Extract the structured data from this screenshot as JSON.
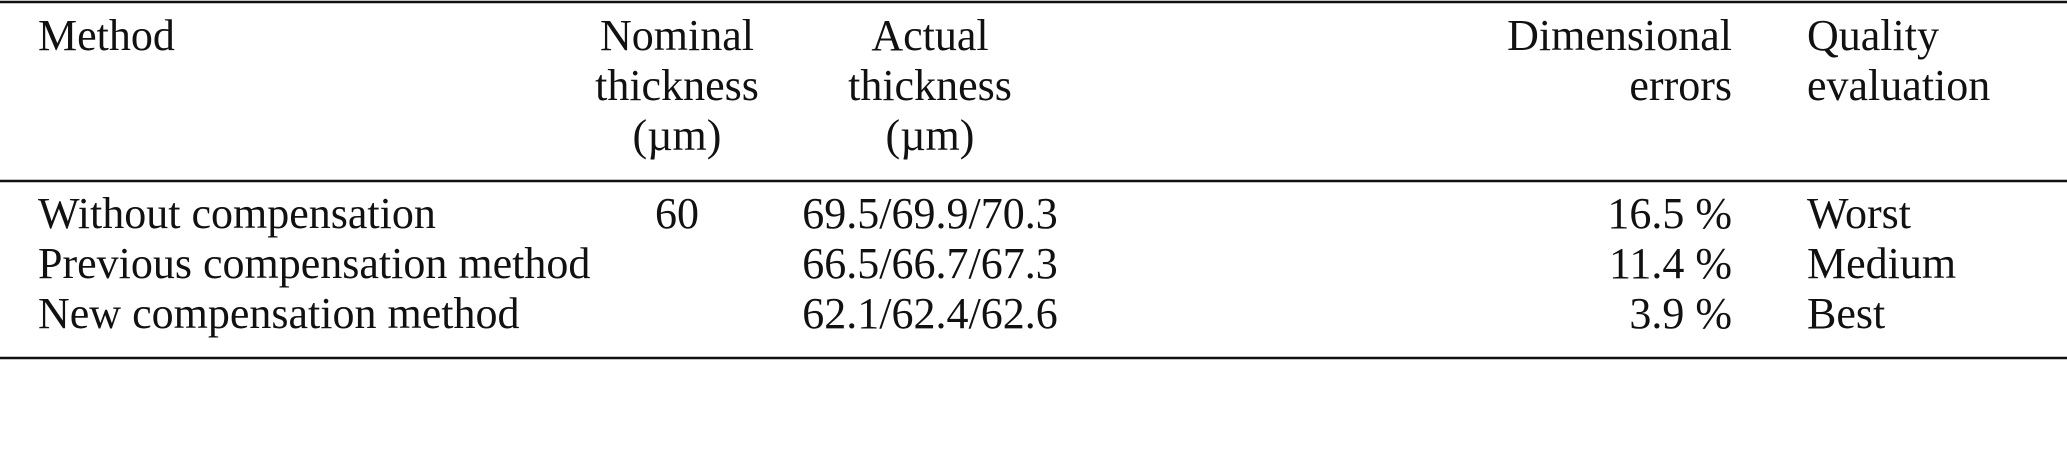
{
  "table": {
    "header": {
      "method": [
        "Method"
      ],
      "nominal": [
        "Nominal",
        "thickness",
        "(µm)"
      ],
      "actual": [
        "Actual",
        "thickness",
        "(µm)"
      ],
      "error": [
        "Dimensional",
        "errors"
      ],
      "quality": [
        "Quality",
        "evaluation"
      ]
    },
    "rows": [
      {
        "method": "Without compensation",
        "nominal": "60",
        "actual": "69.5/69.9/70.3",
        "error": "16.5 %",
        "quality": "Worst"
      },
      {
        "method": "Previous compensation method",
        "actual": "66.5/66.7/67.3",
        "error": "11.4 %",
        "quality": "Medium"
      },
      {
        "method": "New compensation method",
        "actual": "62.1/62.4/62.6",
        "error": "3.9 %",
        "quality": "Best"
      }
    ]
  }
}
